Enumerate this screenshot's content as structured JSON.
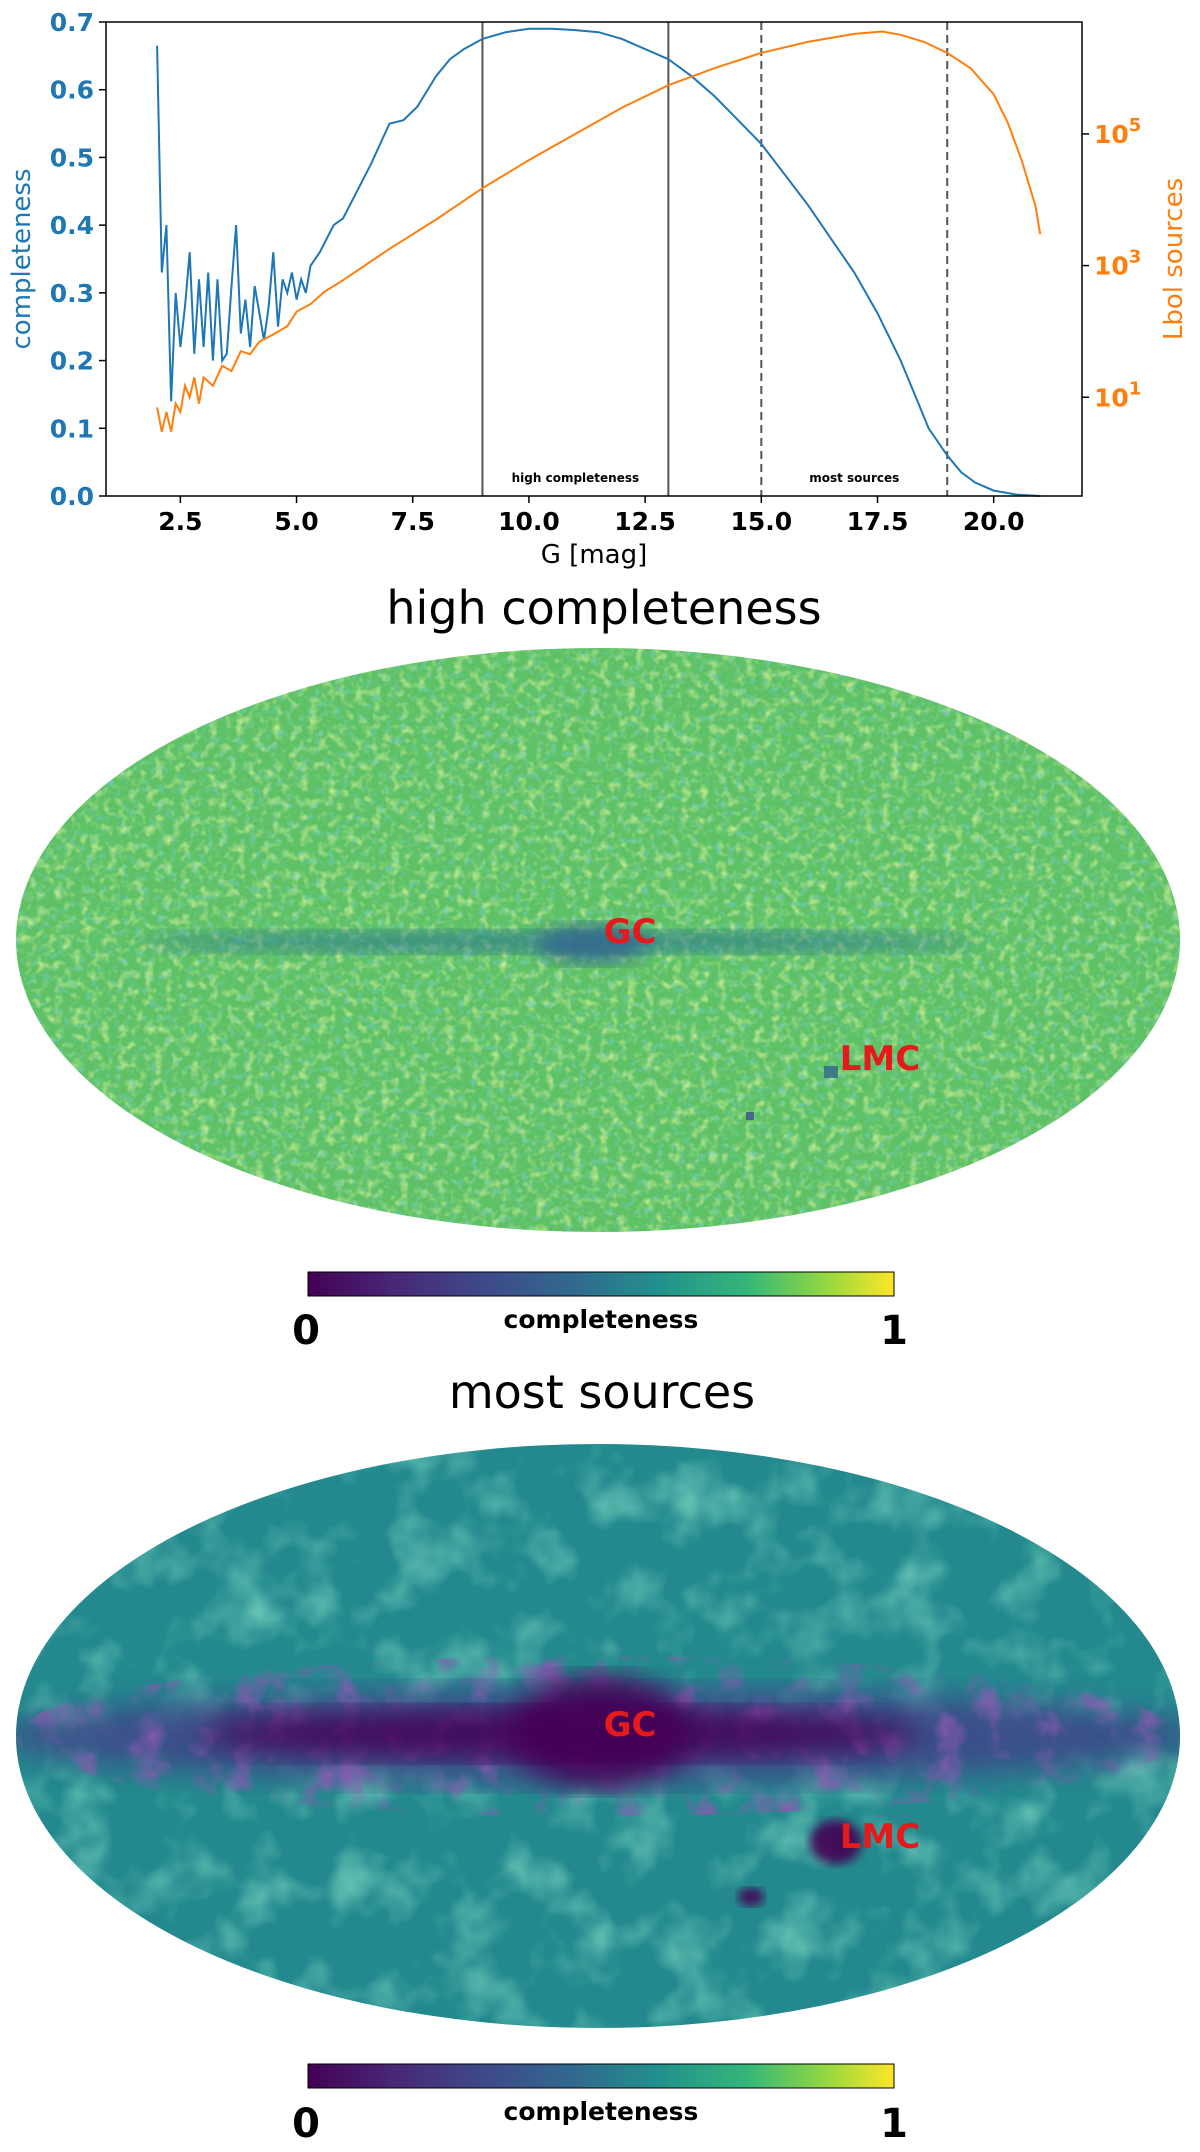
{
  "chart_data": [
    {
      "type": "line",
      "xlabel": "G [mag]",
      "ylabel_left": "completeness",
      "ylabel_right": "Lbol sources",
      "xlim": [
        0.9,
        21.9
      ],
      "ylim_left": [
        0,
        0.7
      ],
      "ylim_right_log10": [
        -0.5,
        6.7
      ],
      "x_ticks": [
        "2.5",
        "5.0",
        "7.5",
        "10.0",
        "12.5",
        "15.0",
        "17.5",
        "20.0"
      ],
      "y_ticks_left": [
        "0.0",
        "0.1",
        "0.2",
        "0.3",
        "0.4",
        "0.5",
        "0.6",
        "0.7"
      ],
      "y_ticks_right": [
        {
          "base": "10",
          "exp": "1",
          "log10": 1
        },
        {
          "base": "10",
          "exp": "3",
          "log10": 3
        },
        {
          "base": "10",
          "exp": "5",
          "log10": 5
        }
      ],
      "colors": {
        "completeness": "#1f77b4",
        "lbol": "#ff7f0e"
      },
      "vlines": [
        {
          "x": 9,
          "style": "solid"
        },
        {
          "x": 13,
          "style": "solid"
        },
        {
          "x": 15,
          "style": "dashed"
        },
        {
          "x": 19,
          "style": "dashed"
        }
      ],
      "bands": [
        {
          "label": "high completeness",
          "x_range": [
            9,
            13
          ]
        },
        {
          "label": "most sources",
          "x_range": [
            15,
            19
          ]
        }
      ],
      "series": [
        {
          "name": "completeness",
          "axis": "left",
          "x": [
            2.0,
            2.1,
            2.2,
            2.3,
            2.4,
            2.5,
            2.6,
            2.7,
            2.8,
            2.9,
            3.0,
            3.1,
            3.2,
            3.3,
            3.4,
            3.5,
            3.6,
            3.7,
            3.8,
            3.9,
            4.0,
            4.1,
            4.2,
            4.3,
            4.4,
            4.5,
            4.6,
            4.7,
            4.8,
            4.9,
            5.0,
            5.1,
            5.2,
            5.3,
            5.5,
            5.8,
            6.0,
            6.3,
            6.6,
            7.0,
            7.3,
            7.6,
            8.0,
            8.3,
            8.6,
            9.0,
            9.5,
            10.0,
            10.5,
            11.0,
            11.5,
            12.0,
            12.5,
            13.0,
            13.5,
            14.0,
            14.5,
            15.0,
            15.5,
            16.0,
            16.5,
            17.0,
            17.5,
            18.0,
            18.3,
            18.6,
            19.0,
            19.3,
            19.6,
            20.0,
            20.5,
            21.0
          ],
          "values": [
            0.665,
            0.33,
            0.4,
            0.14,
            0.3,
            0.22,
            0.28,
            0.36,
            0.21,
            0.32,
            0.22,
            0.33,
            0.2,
            0.32,
            0.2,
            0.21,
            0.31,
            0.4,
            0.24,
            0.29,
            0.22,
            0.31,
            0.27,
            0.23,
            0.28,
            0.36,
            0.25,
            0.32,
            0.3,
            0.33,
            0.29,
            0.32,
            0.3,
            0.34,
            0.36,
            0.4,
            0.41,
            0.45,
            0.49,
            0.55,
            0.555,
            0.575,
            0.62,
            0.645,
            0.66,
            0.675,
            0.685,
            0.69,
            0.69,
            0.688,
            0.685,
            0.675,
            0.66,
            0.645,
            0.62,
            0.59,
            0.555,
            0.52,
            0.475,
            0.43,
            0.38,
            0.33,
            0.27,
            0.2,
            0.15,
            0.1,
            0.06,
            0.035,
            0.02,
            0.008,
            0.002,
            0.0
          ]
        },
        {
          "name": "Lbol sources",
          "axis": "right",
          "scale": "log",
          "x": [
            2.0,
            2.1,
            2.2,
            2.3,
            2.4,
            2.5,
            2.6,
            2.7,
            2.8,
            2.9,
            3.0,
            3.2,
            3.4,
            3.6,
            3.8,
            4.0,
            4.2,
            4.5,
            4.8,
            5.0,
            5.3,
            5.6,
            6.0,
            7.0,
            8.0,
            9.0,
            10.0,
            11.0,
            12.0,
            13.0,
            14.0,
            15.0,
            16.0,
            17.0,
            17.6,
            18.0,
            18.5,
            19.0,
            19.5,
            20.0,
            20.3,
            20.6,
            20.9,
            21.0
          ],
          "values": [
            7,
            3,
            6,
            3,
            8,
            6,
            15,
            10,
            20,
            8,
            20,
            15,
            30,
            25,
            50,
            45,
            70,
            90,
            120,
            200,
            260,
            400,
            600,
            1800,
            5000,
            15000,
            40000,
            100000,
            250000,
            550000,
            1000000,
            1700000,
            2500000,
            3300000,
            3600000,
            3200000,
            2500000,
            1700000,
            1000000,
            400000,
            150000,
            40000,
            8000,
            3000
          ]
        }
      ]
    },
    {
      "type": "heatmap",
      "title": "high completeness",
      "projection": "mollweide all-sky",
      "annotations": [
        "GC",
        "LMC"
      ],
      "colorbar": {
        "label": "completeness",
        "min_label": "0",
        "max_label": "1",
        "min": 0,
        "max": 1,
        "colormap": "viridis"
      },
      "typical_value": 0.68
    },
    {
      "type": "heatmap",
      "title": "most sources",
      "projection": "mollweide all-sky",
      "annotations": [
        "GC",
        "LMC"
      ],
      "colorbar": {
        "label": "completeness",
        "min_label": "0",
        "max_label": "1",
        "min": 0,
        "max": 1,
        "colormap": "viridis"
      },
      "typical_value": 0.5
    }
  ]
}
